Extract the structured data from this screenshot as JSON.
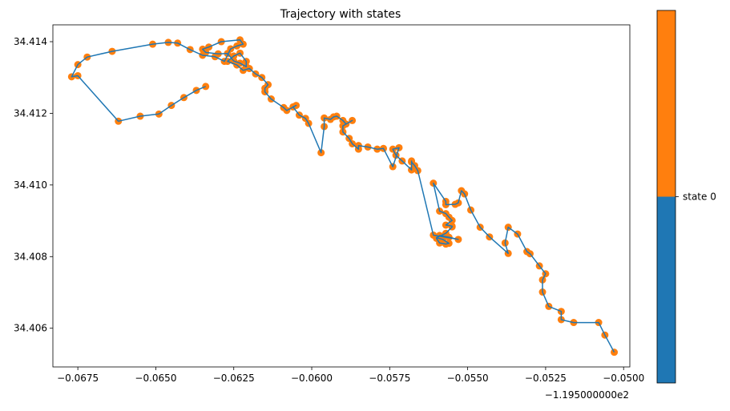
{
  "chart_data": {
    "type": "scatter",
    "title": "Trajectory with states",
    "xlabel": "",
    "ylabel": "",
    "x_offset_label": "−1.195000000e2",
    "xlim": [
      -0.0683,
      -0.0498
    ],
    "ylim": [
      34.40492,
      34.41447
    ],
    "x_ticks": [
      -0.0675,
      -0.065,
      -0.0625,
      -0.06,
      -0.0575,
      -0.055,
      -0.0525,
      -0.05
    ],
    "x_tick_labels": [
      "−0.0675",
      "−0.0650",
      "−0.0625",
      "−0.0600",
      "−0.0575",
      "−0.0550",
      "−0.0525",
      "−0.0500"
    ],
    "y_ticks": [
      34.406,
      34.408,
      34.41,
      34.412,
      34.414
    ],
    "y_tick_labels": [
      "34.406",
      "34.408",
      "34.410",
      "34.412",
      "34.414"
    ],
    "grid": false,
    "line_color": "#1f77b4",
    "point_color": "#ff7f0e",
    "colorbar": {
      "colors": [
        "#1f77b4",
        "#ff7f0e"
      ],
      "tick_label": "state 0"
    },
    "series": [
      {
        "x": [
          -0.0503,
          -0.0506,
          -0.0508,
          -0.0516,
          -0.052,
          -0.052,
          -0.0524,
          -0.0526,
          -0.0526,
          -0.0525,
          -0.0527,
          -0.053,
          -0.0531,
          -0.0534,
          -0.0537,
          -0.0538,
          -0.0537,
          -0.0543,
          -0.0546,
          -0.0549,
          -0.0551,
          -0.0552,
          -0.0553,
          -0.0554,
          -0.0557,
          -0.0557,
          -0.0561,
          -0.0559,
          -0.0557,
          -0.0556,
          -0.0555,
          -0.0557,
          -0.0555,
          -0.0555,
          -0.0557,
          -0.0559,
          -0.056,
          -0.0558,
          -0.0556,
          -0.0557,
          -0.0559,
          -0.056,
          -0.0559,
          -0.0556,
          -0.0553,
          -0.0561,
          -0.0566,
          -0.0567,
          -0.0568,
          -0.0568,
          -0.0568,
          -0.0571,
          -0.0573,
          -0.0574,
          -0.0572,
          -0.0574,
          -0.0577,
          -0.0579,
          -0.0582,
          -0.0585,
          -0.0585,
          -0.0587,
          -0.0588,
          -0.059,
          -0.059,
          -0.0587,
          -0.0589,
          -0.059,
          -0.0592,
          -0.0593,
          -0.0594,
          -0.0596,
          -0.0596,
          -0.0597,
          -0.0601,
          -0.0602,
          -0.0604,
          -0.0606,
          -0.0605,
          -0.0608,
          -0.0609,
          -0.0613,
          -0.0615,
          -0.0615,
          -0.0614,
          -0.0616,
          -0.0618,
          -0.062,
          -0.0622,
          -0.0624,
          -0.0627,
          -0.0625,
          -0.0623,
          -0.0621,
          -0.0621,
          -0.0623,
          -0.0625,
          -0.0627,
          -0.063,
          -0.0634,
          -0.0635,
          -0.0633,
          -0.0629,
          -0.0623,
          -0.0622,
          -0.0624,
          -0.0626,
          -0.0628,
          -0.0631,
          -0.0635,
          -0.0639,
          -0.0643,
          -0.0646,
          -0.0651,
          -0.0664,
          -0.0672,
          -0.0675,
          -0.0677,
          -0.0675,
          -0.0662,
          -0.0655,
          -0.0649,
          -0.0645,
          -0.0641,
          -0.0637,
          -0.0634
        ],
        "y": [
          34.40533,
          34.40581,
          34.40616,
          34.40616,
          34.40624,
          34.40647,
          34.40661,
          34.40701,
          34.40735,
          34.40752,
          34.40774,
          34.40808,
          34.40814,
          34.40863,
          34.40882,
          34.40838,
          34.40809,
          34.40855,
          34.40882,
          34.4093,
          34.40975,
          34.40984,
          34.4095,
          34.40946,
          34.40945,
          34.40954,
          34.41005,
          34.40927,
          34.4092,
          34.4091,
          34.40901,
          34.40888,
          34.40885,
          34.40883,
          34.40865,
          34.40857,
          34.40853,
          34.40848,
          34.40837,
          34.40835,
          34.40838,
          34.40851,
          34.40859,
          34.40854,
          34.40848,
          34.4086,
          34.4104,
          34.41054,
          34.41064,
          34.41067,
          34.41042,
          34.41067,
          34.41083,
          34.411,
          34.41104,
          34.41051,
          34.41102,
          34.411,
          34.41106,
          34.4111,
          34.411,
          34.41115,
          34.4113,
          34.41148,
          34.41165,
          34.4118,
          34.4117,
          34.4118,
          34.41192,
          34.4119,
          34.41183,
          34.41187,
          34.41163,
          34.4109,
          34.41172,
          34.41186,
          34.41195,
          34.41218,
          34.41222,
          34.41208,
          34.41216,
          34.4124,
          34.4126,
          34.4127,
          34.4128,
          34.413,
          34.4131,
          34.41325,
          34.4132,
          34.41335,
          34.41345,
          34.4136,
          34.41368,
          34.41345,
          34.4133,
          34.4134,
          34.41346,
          34.41367,
          34.41366,
          34.4137,
          34.41379,
          34.41385,
          34.414,
          34.41405,
          34.41393,
          34.41388,
          34.4138,
          34.41345,
          34.41358,
          34.41362,
          34.41378,
          34.41396,
          34.41398,
          34.41393,
          34.41373,
          34.41357,
          34.41336,
          34.41302,
          34.41305,
          34.41178,
          34.41192,
          34.41198,
          34.41222,
          34.41244,
          34.41264,
          34.41275
        ]
      }
    ]
  }
}
